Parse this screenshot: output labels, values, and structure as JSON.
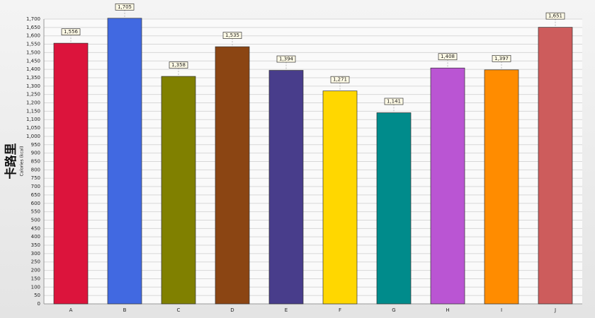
{
  "chart_data": {
    "type": "bar",
    "y_label": "卡路里",
    "y_sublabel": "Calories (kcal)",
    "categories": [
      "A",
      "B",
      "C",
      "D",
      "E",
      "F",
      "G",
      "H",
      "I",
      "J"
    ],
    "values": [
      1556,
      1705,
      1358,
      1535,
      1394,
      1271,
      1141,
      1408,
      1397,
      1651
    ],
    "value_labels": [
      "1,556",
      "1,705",
      "1,358",
      "1,535",
      "1,394",
      "1,271",
      "1,141",
      "1,408",
      "1,397",
      "1,651"
    ],
    "colors": [
      "#dc143c",
      "#4169e1",
      "#808000",
      "#8b4513",
      "#483d8b",
      "#ffd700",
      "#008b8b",
      "#ba55d3",
      "#ff8c00",
      "#cd5c5c"
    ],
    "ylim": [
      0,
      1700
    ],
    "yticks": [
      0,
      50,
      100,
      150,
      200,
      250,
      300,
      350,
      400,
      450,
      500,
      550,
      600,
      650,
      700,
      750,
      800,
      850,
      900,
      950,
      {
        "value": 1000,
        "label": "1,000"
      },
      {
        "value": 1050,
        "label": "1,050"
      },
      {
        "value": 1100,
        "label": "1,100"
      },
      {
        "value": 1150,
        "label": "1,150"
      },
      {
        "value": 1200,
        "label": "1,200"
      },
      {
        "value": 1250,
        "label": "1,250"
      },
      {
        "value": 1300,
        "label": "1,300"
      },
      {
        "value": 1350,
        "label": "1,350"
      },
      {
        "value": 1400,
        "label": "1,400"
      },
      {
        "value": 1450,
        "label": "1,450"
      },
      {
        "value": 1500,
        "label": "1,500"
      },
      {
        "value": 1550,
        "label": "1,550"
      },
      {
        "value": 1600,
        "label": "1,600"
      },
      {
        "value": 1650,
        "label": "1,650"
      },
      {
        "value": 1700,
        "label": "1,700"
      }
    ],
    "grid": true
  }
}
